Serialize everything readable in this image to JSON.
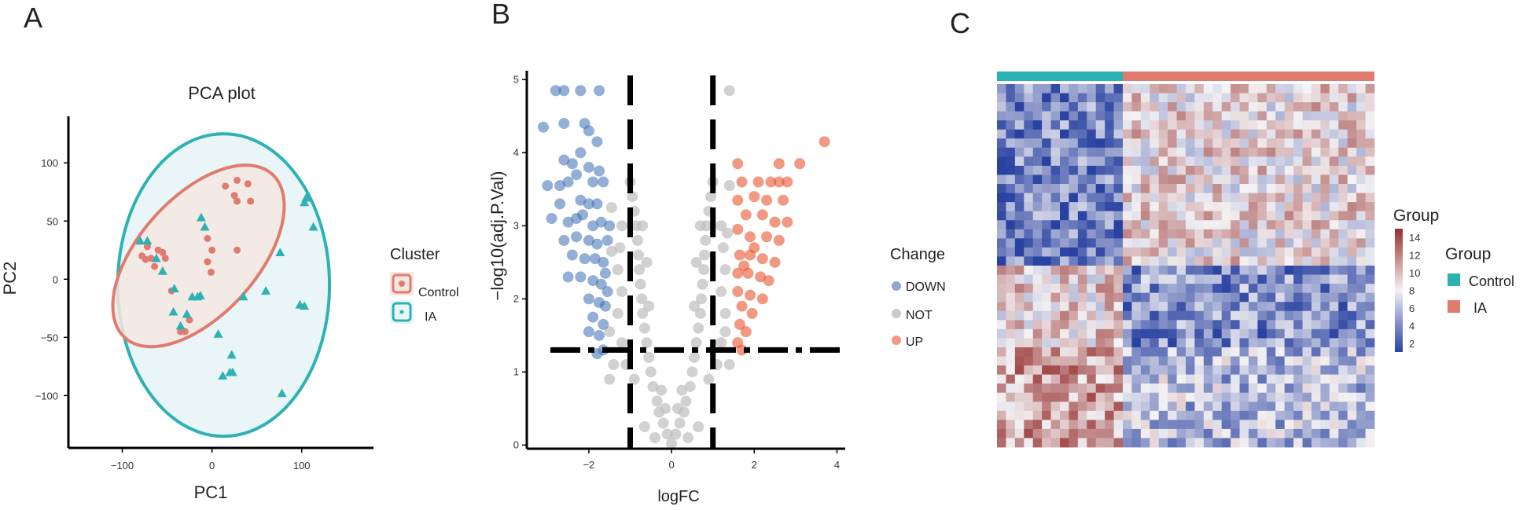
{
  "colors": {
    "control": "#E07B6F",
    "ia": "#2DB2B3",
    "control_fill": "#F5E6E2",
    "ia_fill": "#E9F5F7",
    "down": "#3D6DB5",
    "not": "#BDBDBD",
    "up": "#E8552F",
    "heat_low": "#2942A1",
    "heat_mid": "#F4F2F4",
    "heat_high": "#962F2E"
  },
  "panels": {
    "a": "A",
    "b": "B",
    "c": "C"
  },
  "chart_data": [
    {
      "type": "scatter",
      "title": "PCA plot",
      "xlabel": "PC1",
      "ylabel": "PC2",
      "xlim": [
        -160,
        180
      ],
      "ylim": [
        -145,
        140
      ],
      "xticks": [
        -100,
        0,
        100
      ],
      "xtick_labels": [
        "−100",
        "0",
        "100"
      ],
      "yticks": [
        100,
        50,
        0,
        -50,
        -100
      ],
      "ytick_labels": [
        "100",
        "50",
        "0",
        "−50",
        "−100"
      ],
      "legend": {
        "title": "Cluster",
        "entries": [
          "Control",
          "IA"
        ],
        "position": "right"
      },
      "series": [
        {
          "name": "Control",
          "marker": "circle",
          "points": [
            [
              15,
              80
            ],
            [
              28,
              85
            ],
            [
              40,
              82
            ],
            [
              25,
              72
            ],
            [
              43,
              67
            ],
            [
              28,
              67
            ],
            [
              -5,
              35
            ],
            [
              -5,
              15
            ],
            [
              0,
              25
            ],
            [
              -1,
              6
            ],
            [
              28,
              25
            ],
            [
              -78,
              20
            ],
            [
              -72,
              28
            ],
            [
              -68,
              18
            ],
            [
              -60,
              25
            ],
            [
              -64,
              11
            ],
            [
              -74,
              17
            ],
            [
              -55,
              23
            ],
            [
              -52,
              18
            ],
            [
              -45,
              -10
            ],
            [
              -25,
              -35
            ],
            [
              -30,
              -45
            ],
            [
              -35,
              -45
            ]
          ]
        },
        {
          "name": "IA",
          "marker": "triangle",
          "points": [
            [
              -80,
              33
            ],
            [
              -72,
              33
            ],
            [
              -62,
              18
            ],
            [
              -55,
              7
            ],
            [
              -42,
              -8
            ],
            [
              -12,
              53
            ],
            [
              -8,
              45
            ],
            [
              -35,
              -40
            ],
            [
              -22,
              -15
            ],
            [
              -16,
              -15
            ],
            [
              -13,
              -14
            ],
            [
              -28,
              -30
            ],
            [
              -43,
              -28
            ],
            [
              7,
              -47
            ],
            [
              22,
              -65
            ],
            [
              20,
              -80
            ],
            [
              12,
              -83
            ],
            [
              23,
              -80
            ],
            [
              103,
              66
            ],
            [
              105,
              70
            ],
            [
              113,
              45
            ],
            [
              76,
              23
            ],
            [
              60,
              -10
            ],
            [
              98,
              -22
            ],
            [
              103,
              -23
            ],
            [
              35,
              -15
            ],
            [
              78,
              -98
            ]
          ]
        }
      ]
    },
    {
      "type": "scatter",
      "xlabel": "logFC",
      "ylabel": "−log10(adj.P.Val)",
      "xlim": [
        -3.5,
        4.2
      ],
      "ylim": [
        -0.05,
        5.1
      ],
      "xticks": [
        -2,
        0,
        2,
        4
      ],
      "xtick_labels": [
        "−2",
        "0",
        "2",
        "4"
      ],
      "yticks": [
        0,
        1,
        2,
        3,
        4,
        5
      ],
      "ytick_labels": [
        "0",
        "1",
        "2",
        "3",
        "4",
        "5"
      ],
      "thresholds": {
        "logfc": [
          -1,
          1
        ],
        "adj_p_log": 1.3
      },
      "legend": {
        "title": "Change",
        "entries": [
          "DOWN",
          "NOT",
          "UP"
        ],
        "position": "right"
      },
      "series": [
        {
          "name": "DOWN",
          "points": [
            [
              -2.8,
              4.85
            ],
            [
              -2.6,
              4.85
            ],
            [
              -2.2,
              4.85
            ],
            [
              -1.75,
              4.85
            ],
            [
              -3.1,
              4.35
            ],
            [
              -2.6,
              4.4
            ],
            [
              -2.1,
              4.4
            ],
            [
              -2.0,
              4.3
            ],
            [
              -1.8,
              4.15
            ],
            [
              -2.6,
              3.9
            ],
            [
              -2.2,
              4.0
            ],
            [
              -2.4,
              3.85
            ],
            [
              -2.0,
              3.8
            ],
            [
              -1.75,
              3.75
            ],
            [
              -3.0,
              3.55
            ],
            [
              -2.5,
              3.6
            ],
            [
              -1.9,
              3.6
            ],
            [
              -1.65,
              3.6
            ],
            [
              -2.7,
              3.3
            ],
            [
              -2.2,
              3.35
            ],
            [
              -2.0,
              3.3
            ],
            [
              -1.8,
              3.3
            ],
            [
              -2.9,
              3.1
            ],
            [
              -2.5,
              3.05
            ],
            [
              -2.3,
              3.1
            ],
            [
              -1.9,
              3.0
            ],
            [
              -1.7,
              3.05
            ],
            [
              -2.6,
              2.8
            ],
            [
              -2.3,
              2.85
            ],
            [
              -2.0,
              2.8
            ],
            [
              -1.8,
              2.75
            ],
            [
              -2.4,
              2.6
            ],
            [
              -2.1,
              2.55
            ],
            [
              -1.85,
              2.55
            ],
            [
              -1.65,
              2.5
            ],
            [
              -2.5,
              2.3
            ],
            [
              -2.2,
              2.3
            ],
            [
              -1.9,
              2.25
            ],
            [
              -1.7,
              2.2
            ],
            [
              -2.0,
              2.0
            ],
            [
              -1.75,
              1.95
            ],
            [
              -1.6,
              1.9
            ],
            [
              -1.9,
              1.75
            ],
            [
              -1.65,
              1.65
            ],
            [
              -1.75,
              1.5
            ],
            [
              -1.65,
              1.3
            ],
            [
              -1.8,
              1.25
            ],
            [
              -1.55,
              2.1
            ],
            [
              -1.55,
              2.8
            ],
            [
              -1.5,
              3.0
            ],
            [
              -2.7,
              3.55
            ],
            [
              -2.3,
              3.7
            ],
            [
              -2.15,
              3.15
            ],
            [
              -1.6,
              2.35
            ],
            [
              -2.0,
              1.55
            ]
          ]
        },
        {
          "name": "NOT",
          "points": [
            [
              0,
              0.02
            ],
            [
              0.1,
              0.15
            ],
            [
              -0.1,
              0.15
            ],
            [
              0.2,
              0.3
            ],
            [
              -0.2,
              0.3
            ],
            [
              0.3,
              0.45
            ],
            [
              -0.3,
              0.45
            ],
            [
              0.35,
              0.6
            ],
            [
              -0.35,
              0.6
            ],
            [
              0.45,
              0.8
            ],
            [
              -0.45,
              0.8
            ],
            [
              0.5,
              1.0
            ],
            [
              -0.5,
              1.0
            ],
            [
              0.55,
              1.2
            ],
            [
              -0.55,
              1.2
            ],
            [
              0.6,
              1.4
            ],
            [
              -0.6,
              1.4
            ],
            [
              0.65,
              1.6
            ],
            [
              -0.65,
              1.6
            ],
            [
              0.7,
              1.8
            ],
            [
              -0.7,
              1.8
            ],
            [
              0.72,
              2.0
            ],
            [
              -0.72,
              2.0
            ],
            [
              0.75,
              2.2
            ],
            [
              -0.75,
              2.2
            ],
            [
              0.78,
              2.4
            ],
            [
              -0.78,
              2.4
            ],
            [
              0.8,
              2.6
            ],
            [
              -0.8,
              2.6
            ],
            [
              0.82,
              2.8
            ],
            [
              -0.82,
              2.8
            ],
            [
              0.85,
              3.0
            ],
            [
              -0.85,
              3.0
            ],
            [
              0.9,
              3.2
            ],
            [
              -0.9,
              3.2
            ],
            [
              0.95,
              3.4
            ],
            [
              -0.95,
              3.4
            ],
            [
              1.0,
              3.6
            ],
            [
              -1.0,
              3.6
            ],
            [
              1.2,
              3.0
            ],
            [
              -1.2,
              3.0
            ],
            [
              1.25,
              2.7
            ],
            [
              -1.25,
              2.7
            ],
            [
              1.3,
              2.4
            ],
            [
              -1.3,
              2.4
            ],
            [
              1.2,
              2.1
            ],
            [
              -1.2,
              2.1
            ],
            [
              1.3,
              1.8
            ],
            [
              -1.3,
              1.8
            ],
            [
              1.2,
              1.4
            ],
            [
              -1.2,
              1.4
            ],
            [
              1.1,
              1.1
            ],
            [
              -1.1,
              1.1
            ],
            [
              0.9,
              0.9
            ],
            [
              -0.9,
              0.9
            ],
            [
              1.4,
              1.1
            ],
            [
              -1.4,
              1.1
            ],
            [
              -1.5,
              0.9
            ],
            [
              1.4,
              4.85
            ],
            [
              1.4,
              3.55
            ],
            [
              -1.45,
              3.25
            ],
            [
              -1.45,
              2.65
            ],
            [
              -1.5,
              1.55
            ],
            [
              1.3,
              1.55
            ],
            [
              1.35,
              2.9
            ],
            [
              -0.65,
              0.25
            ],
            [
              0.65,
              0.25
            ],
            [
              0.4,
              0.1
            ],
            [
              -0.4,
              0.1
            ],
            [
              0.25,
              0.75
            ],
            [
              -0.25,
              0.75
            ],
            [
              0.15,
              0.5
            ],
            [
              -0.15,
              0.5
            ],
            [
              0.55,
              1.9
            ],
            [
              -0.55,
              1.9
            ],
            [
              0.6,
              2.5
            ],
            [
              -0.6,
              2.5
            ],
            [
              0.7,
              3.0
            ],
            [
              -0.7,
              3.0
            ]
          ]
        },
        {
          "name": "UP",
          "points": [
            [
              3.7,
              4.15
            ],
            [
              3.1,
              3.85
            ],
            [
              2.6,
              3.85
            ],
            [
              1.6,
              3.85
            ],
            [
              1.7,
              3.6
            ],
            [
              2.1,
              3.6
            ],
            [
              2.4,
              3.6
            ],
            [
              2.6,
              3.6
            ],
            [
              2.8,
              3.6
            ],
            [
              1.6,
              3.35
            ],
            [
              2.0,
              3.4
            ],
            [
              2.3,
              3.35
            ],
            [
              2.7,
              3.35
            ],
            [
              1.8,
              3.15
            ],
            [
              2.2,
              3.15
            ],
            [
              2.5,
              3.05
            ],
            [
              2.8,
              3.05
            ],
            [
              1.6,
              2.95
            ],
            [
              1.9,
              2.85
            ],
            [
              2.3,
              2.85
            ],
            [
              2.6,
              2.8
            ],
            [
              1.65,
              2.6
            ],
            [
              1.9,
              2.6
            ],
            [
              2.2,
              2.55
            ],
            [
              2.5,
              2.5
            ],
            [
              1.6,
              2.35
            ],
            [
              1.85,
              2.35
            ],
            [
              2.15,
              2.3
            ],
            [
              2.35,
              2.25
            ],
            [
              1.6,
              2.1
            ],
            [
              1.9,
              2.05
            ],
            [
              2.2,
              2.0
            ],
            [
              1.7,
              1.9
            ],
            [
              1.95,
              1.8
            ],
            [
              1.65,
              1.65
            ],
            [
              1.8,
              1.55
            ],
            [
              1.6,
              1.4
            ],
            [
              1.7,
              1.3
            ],
            [
              1.75,
              2.45
            ],
            [
              2.0,
              2.7
            ]
          ]
        }
      ]
    },
    {
      "type": "heatmap",
      "rows": 40,
      "cols": 42,
      "groups": [
        {
          "name": "Control",
          "cols": 14
        },
        {
          "name": "IA",
          "cols": 28
        }
      ],
      "value_range": [
        1,
        15
      ],
      "colorbar_title": "Group",
      "colorbar_ticks": [
        14,
        12,
        10,
        8,
        6,
        4,
        2
      ],
      "legend": {
        "title": "Group",
        "entries": [
          "Control",
          "IA"
        ],
        "position": "right"
      },
      "row_blocks": [
        {
          "rows": [
            0,
            19
          ],
          "control_mean": 3.5,
          "ia_mean": 8.8
        },
        {
          "rows": [
            20,
            28
          ],
          "control_mean": 9.2,
          "ia_mean": 4.2
        },
        {
          "rows": [
            29,
            39
          ],
          "control_mean": 10.8,
          "ia_mean": 6.0
        }
      ]
    }
  ]
}
